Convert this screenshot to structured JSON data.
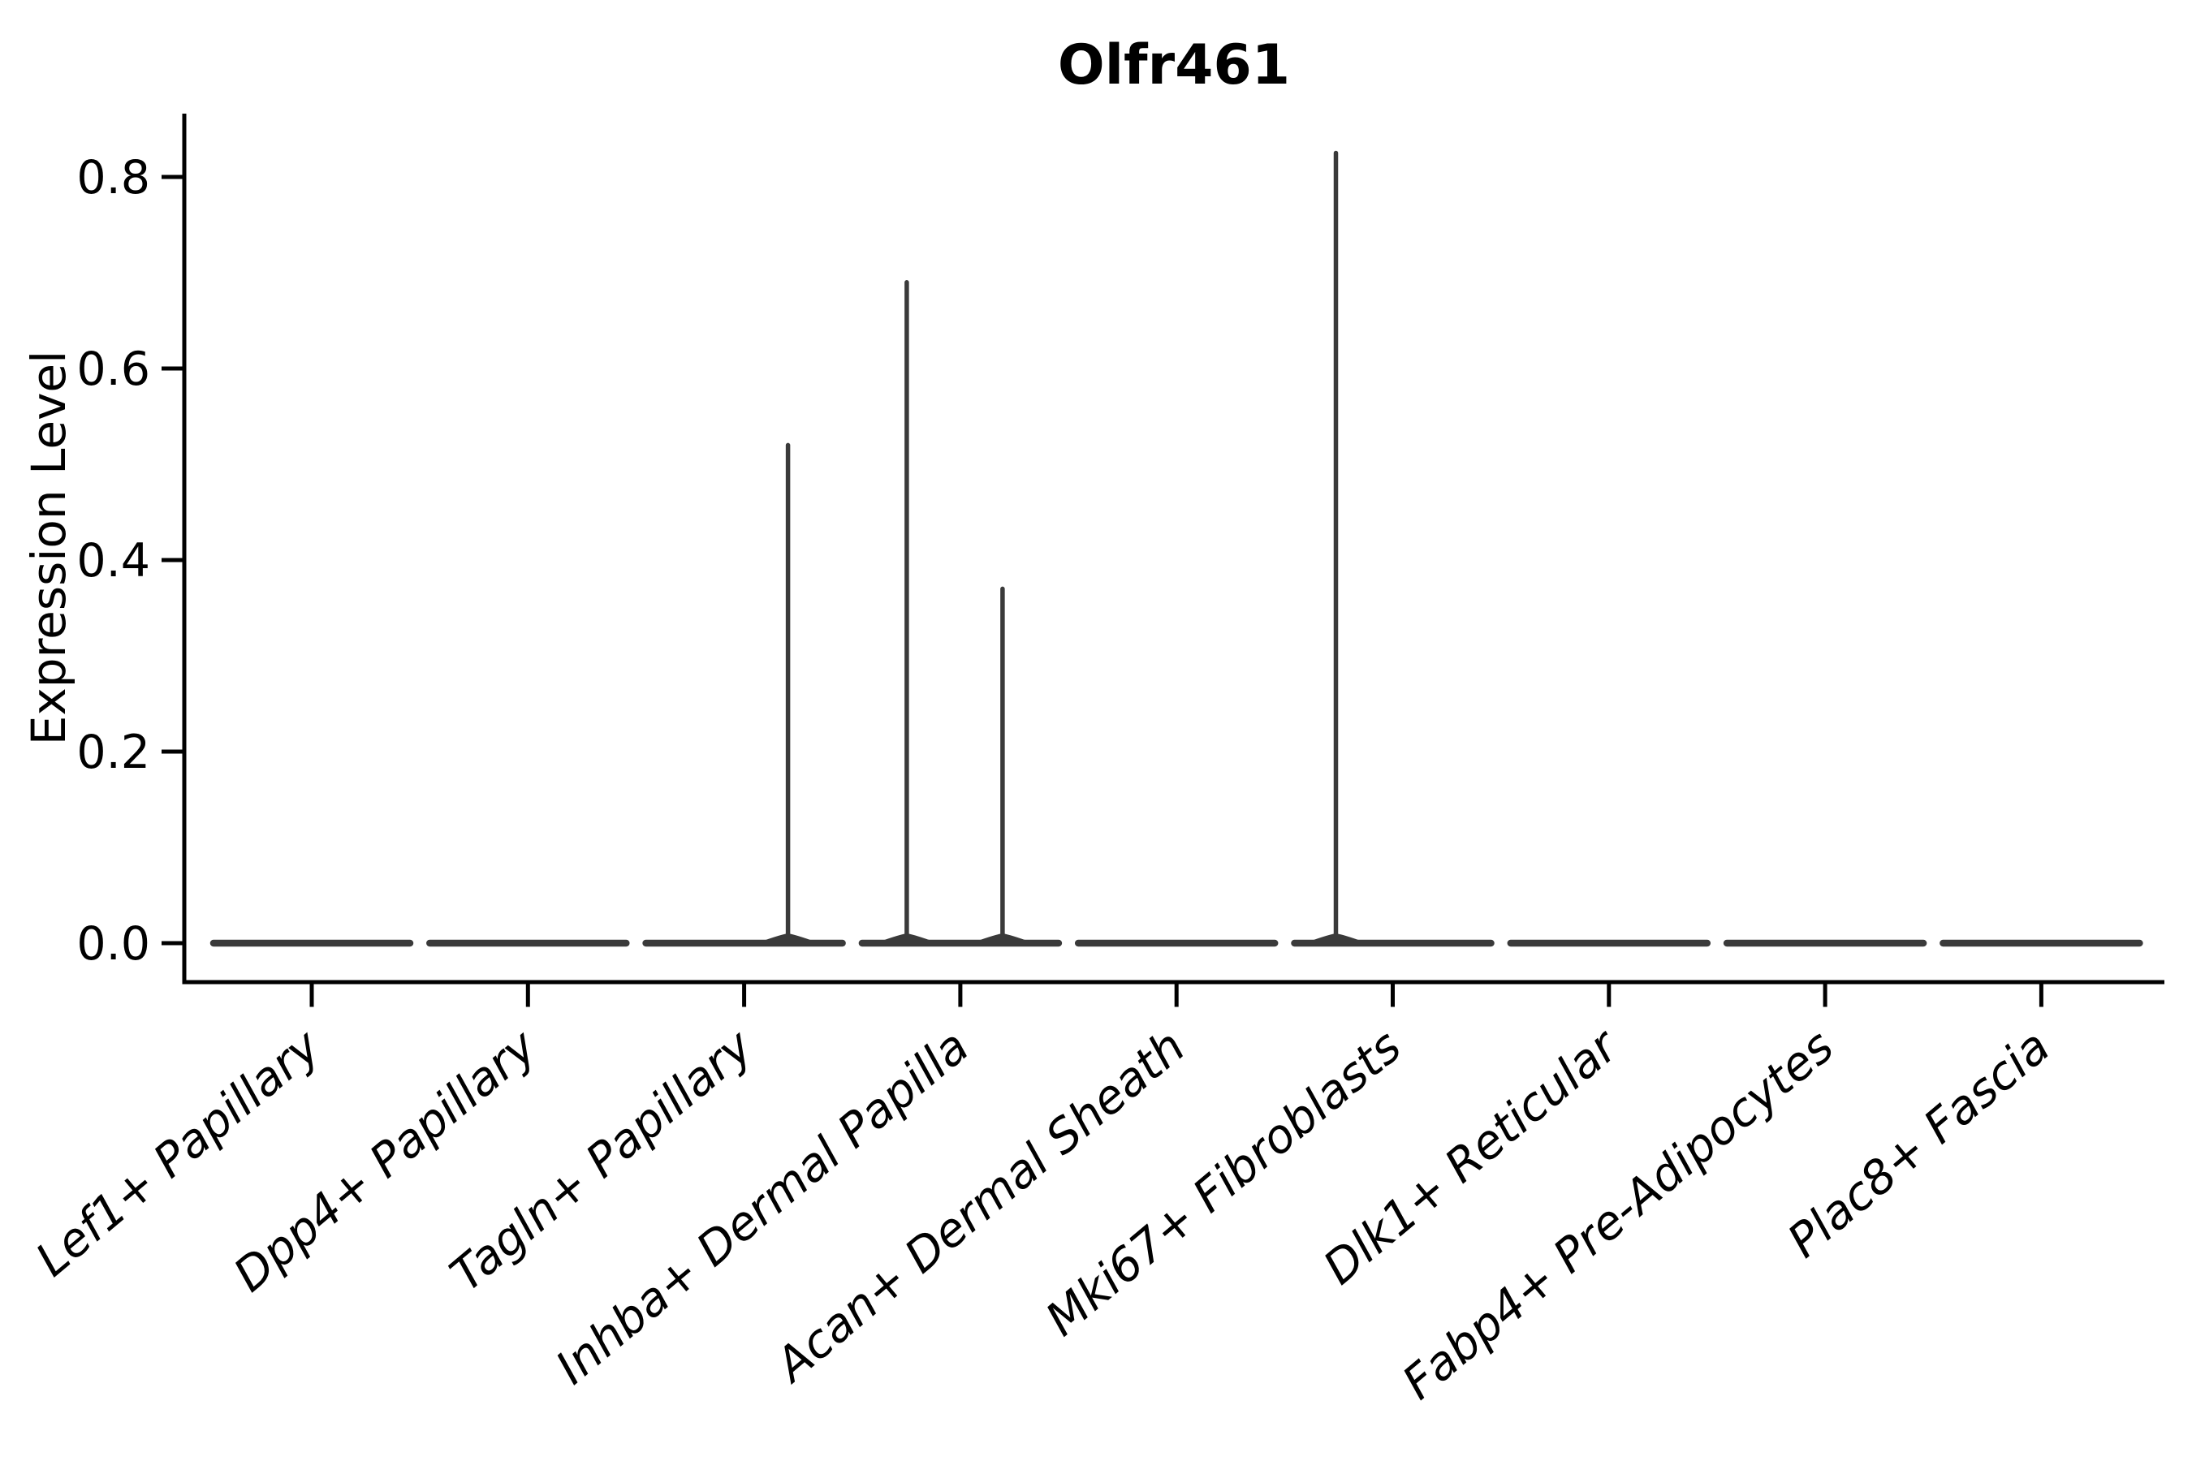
{
  "chart_data": {
    "type": "violin",
    "title": "Olfr461",
    "ylabel": "Expression Level",
    "xlabel": "",
    "grid": false,
    "legend": null,
    "ylim": [
      0,
      0.85
    ],
    "yticks": [
      {
        "value": 0.0,
        "label": "0.0"
      },
      {
        "value": 0.2,
        "label": "0.2"
      },
      {
        "value": 0.4,
        "label": "0.4"
      },
      {
        "value": 0.6,
        "label": "0.6"
      },
      {
        "value": 0.8,
        "label": "0.8"
      }
    ],
    "categories": [
      "Lef1+ Papillary",
      "Dpp4+ Papillary",
      "Tagln+ Papillary",
      "Inhba+ Dermal Papilla",
      "Acan+ Dermal Sheath",
      "Mki67+ Fibroblasts",
      "Dlk1+ Reticular",
      "Fabp4+ Pre-Adipocytes",
      "Plac8+ Fascia"
    ],
    "series": [
      {
        "category": "Lef1+ Papillary",
        "baseline_value": 0.0,
        "max_expression": 0.0,
        "spikes": []
      },
      {
        "category": "Dpp4+ Papillary",
        "baseline_value": 0.0,
        "max_expression": 0.0,
        "spikes": []
      },
      {
        "category": "Tagln+ Papillary",
        "baseline_value": 0.0,
        "max_expression": 0.52,
        "spikes": [
          {
            "value": 0.52,
            "dx": 54
          }
        ]
      },
      {
        "category": "Inhba+ Dermal Papilla",
        "baseline_value": 0.0,
        "max_expression": 0.69,
        "spikes": [
          {
            "value": 0.69,
            "dx": -66
          },
          {
            "value": 0.37,
            "dx": 52
          }
        ]
      },
      {
        "category": "Acan+ Dermal Sheath",
        "baseline_value": 0.0,
        "max_expression": 0.0,
        "spikes": []
      },
      {
        "category": "Mki67+ Fibroblasts",
        "baseline_value": 0.0,
        "max_expression": 0.82,
        "spikes": [
          {
            "value": 0.825,
            "dx": -70
          }
        ]
      },
      {
        "category": "Dlk1+ Reticular",
        "baseline_value": 0.0,
        "max_expression": 0.0,
        "spikes": []
      },
      {
        "category": "Fabp4+ Pre-Adipocytes",
        "baseline_value": 0.0,
        "max_expression": 0.0,
        "spikes": []
      },
      {
        "category": "Plac8+ Fascia",
        "baseline_value": 0.0,
        "max_expression": 0.0,
        "spikes": []
      }
    ],
    "colors": {
      "violin_line": "#3a3a3a",
      "axis": "#000000",
      "text": "#000000",
      "background": "#ffffff"
    },
    "xtick_rotation_deg": 40
  }
}
